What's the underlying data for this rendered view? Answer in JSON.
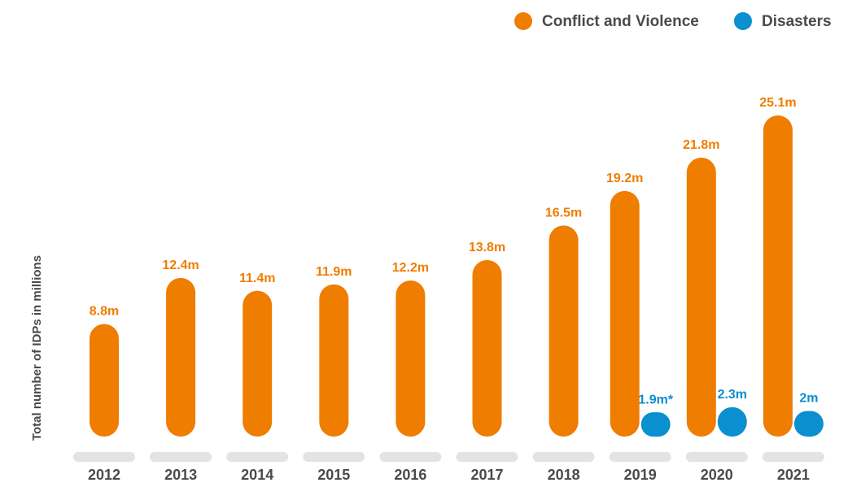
{
  "chart_data": {
    "type": "bar",
    "y_axis_label": "Total number of IDPs in millions",
    "categories": [
      "2012",
      "2013",
      "2014",
      "2015",
      "2016",
      "2017",
      "2018",
      "2019",
      "2020",
      "2021"
    ],
    "series": [
      {
        "name": "Conflict and Violence",
        "color": "#ef7d00",
        "values": [
          8.8,
          12.4,
          11.4,
          11.9,
          12.2,
          13.8,
          16.5,
          19.2,
          21.8,
          25.1
        ],
        "value_labels": [
          "8.8m",
          "12.4m",
          "11.4m",
          "11.9m",
          "12.2m",
          "13.8m",
          "16.5m",
          "19.2m",
          "21.8m",
          "25.1m"
        ]
      },
      {
        "name": "Disasters",
        "color": "#0a8fcf",
        "values": [
          null,
          null,
          null,
          null,
          null,
          null,
          null,
          1.9,
          2.3,
          2
        ],
        "value_labels": [
          null,
          null,
          null,
          null,
          null,
          null,
          null,
          "1.9m*",
          "2.3m",
          "2m"
        ]
      }
    ],
    "legend": "top-right"
  }
}
